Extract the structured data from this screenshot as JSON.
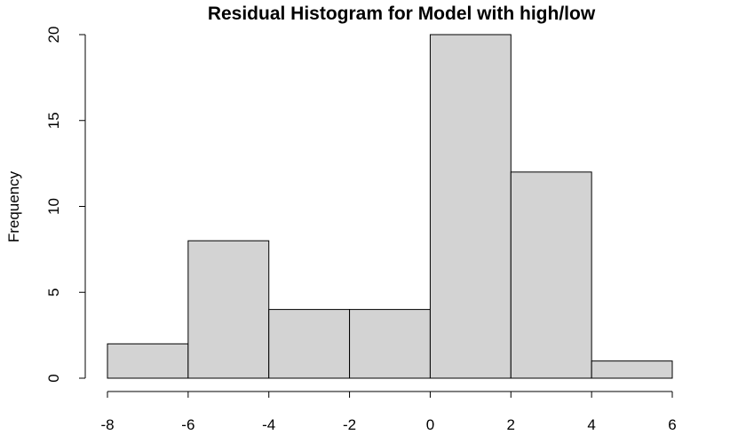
{
  "chart_data": {
    "type": "bar",
    "title": "Residual Histogram for Model with high/low",
    "xlabel": "",
    "ylabel": "Frequency",
    "bins": [
      {
        "start": -8,
        "end": -6,
        "count": 2
      },
      {
        "start": -6,
        "end": -4,
        "count": 8
      },
      {
        "start": -4,
        "end": -2,
        "count": 4
      },
      {
        "start": -2,
        "end": 0,
        "count": 4
      },
      {
        "start": 0,
        "end": 2,
        "count": 20
      },
      {
        "start": 2,
        "end": 4,
        "count": 12
      },
      {
        "start": 4,
        "end": 6,
        "count": 1
      }
    ],
    "xlim": [
      -8,
      6
    ],
    "ylim": [
      0,
      20
    ],
    "xticks": [
      -8,
      -6,
      -4,
      -2,
      0,
      2,
      4,
      6
    ],
    "yticks": [
      0,
      5,
      10,
      15,
      20
    ],
    "bar_color": "#d3d3d3",
    "edge_color": "#000000",
    "grid": false,
    "legend": "none"
  }
}
